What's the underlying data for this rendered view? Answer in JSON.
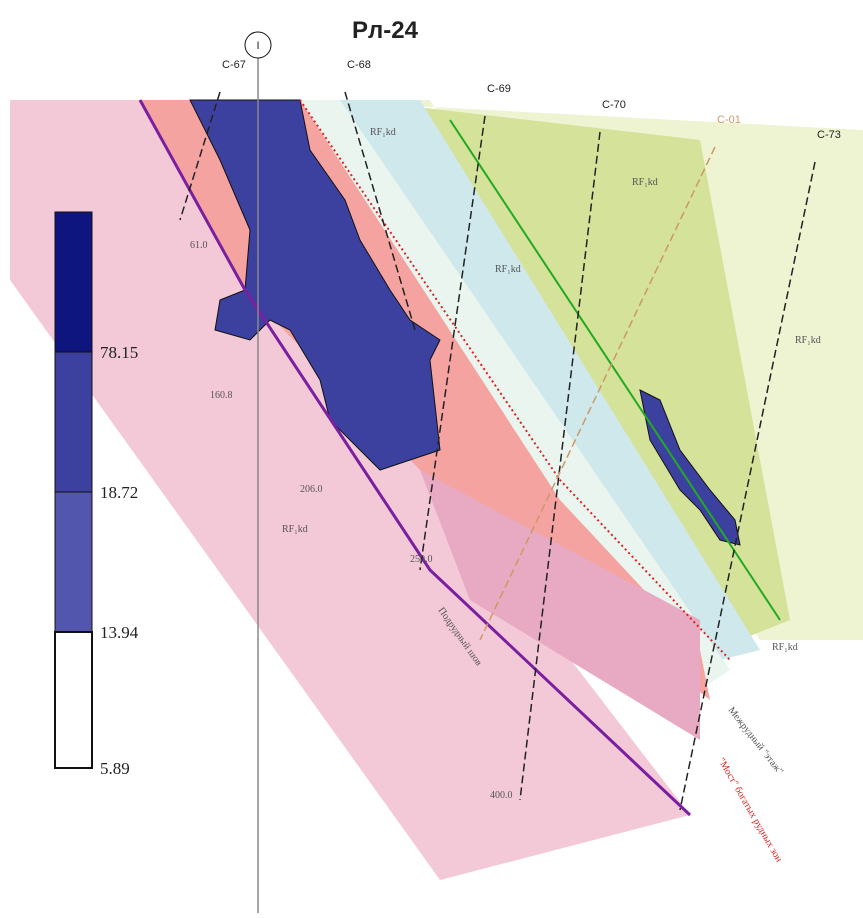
{
  "header": {
    "title": "Рл-24",
    "marker": "I"
  },
  "wells": [
    {
      "label": "С-67"
    },
    {
      "label": "С-68"
    },
    {
      "label": "С-69"
    },
    {
      "label": "С-70"
    },
    {
      "label": "С-01"
    },
    {
      "label": "С-73"
    }
  ],
  "legend": {
    "levels": [
      "78.15",
      "18.72",
      "13.94",
      "5.89"
    ]
  },
  "depths": [
    "61.0",
    "160.8",
    "206.0",
    "250.0",
    "400.0"
  ],
  "formations": [
    "RF₁kd",
    "RF₁kd",
    "RF₁kd",
    "RF₁kd",
    "RF₁kd",
    "RF₁kd"
  ],
  "annotations": [
    "Подрудный шов",
    "Межрудный \"этаж\"",
    "\"Мост\" богатых рудных зон"
  ]
}
